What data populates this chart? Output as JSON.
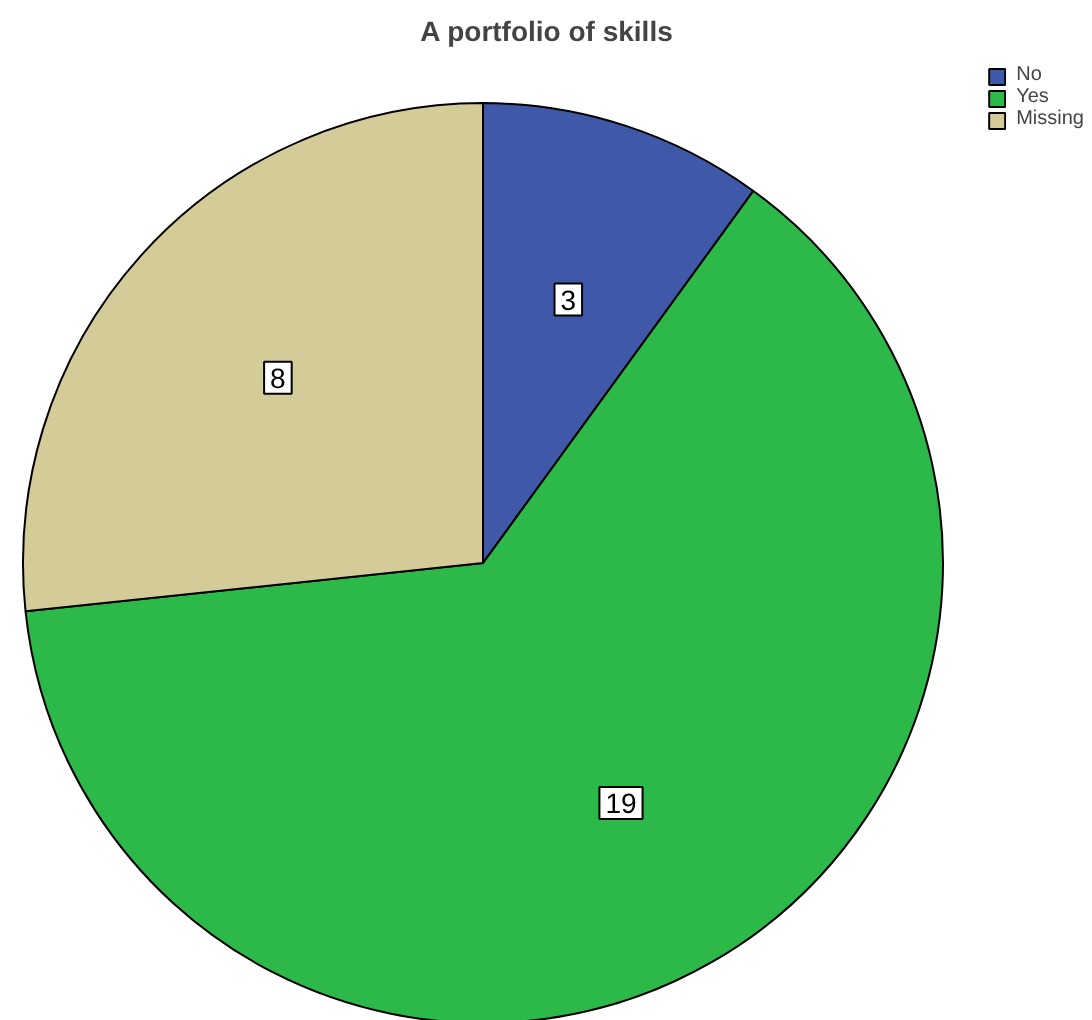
{
  "chart_data": {
    "type": "pie",
    "title": "A portfolio of skills",
    "categories": [
      "No",
      "Yes",
      "Missing"
    ],
    "values": [
      3,
      19,
      8
    ],
    "colors": [
      "#3f58a8",
      "#2db84a",
      "#d4cc98"
    ],
    "data_labels": true,
    "legend": "top right"
  }
}
